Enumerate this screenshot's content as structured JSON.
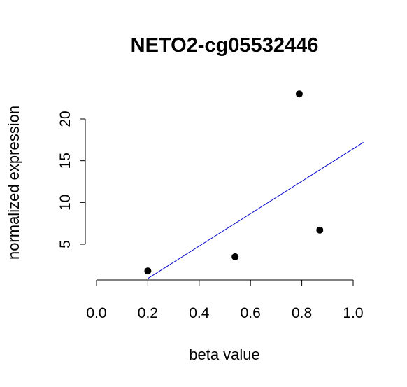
{
  "chart_data": {
    "type": "scatter",
    "title": "NETO2-cg05532446",
    "xlabel": "beta value",
    "ylabel": "normalized expression",
    "xlim": [
      0.0,
      1.0
    ],
    "ylim": [
      0,
      23
    ],
    "x_ticks": [
      "0.0",
      "0.2",
      "0.4",
      "0.6",
      "0.8",
      "1.0"
    ],
    "y_ticks": [
      "5",
      "10",
      "15",
      "20"
    ],
    "grid": false,
    "points": [
      {
        "x": 0.2,
        "y": 1.8
      },
      {
        "x": 0.54,
        "y": 3.5
      },
      {
        "x": 0.79,
        "y": 23.0
      },
      {
        "x": 0.87,
        "y": 6.7
      }
    ],
    "fit_line": {
      "x": [
        0.2,
        1.04
      ],
      "y": [
        0.9,
        17.2
      ]
    },
    "colors": {
      "points": "#000000",
      "fit_line": "#0000cc"
    }
  }
}
